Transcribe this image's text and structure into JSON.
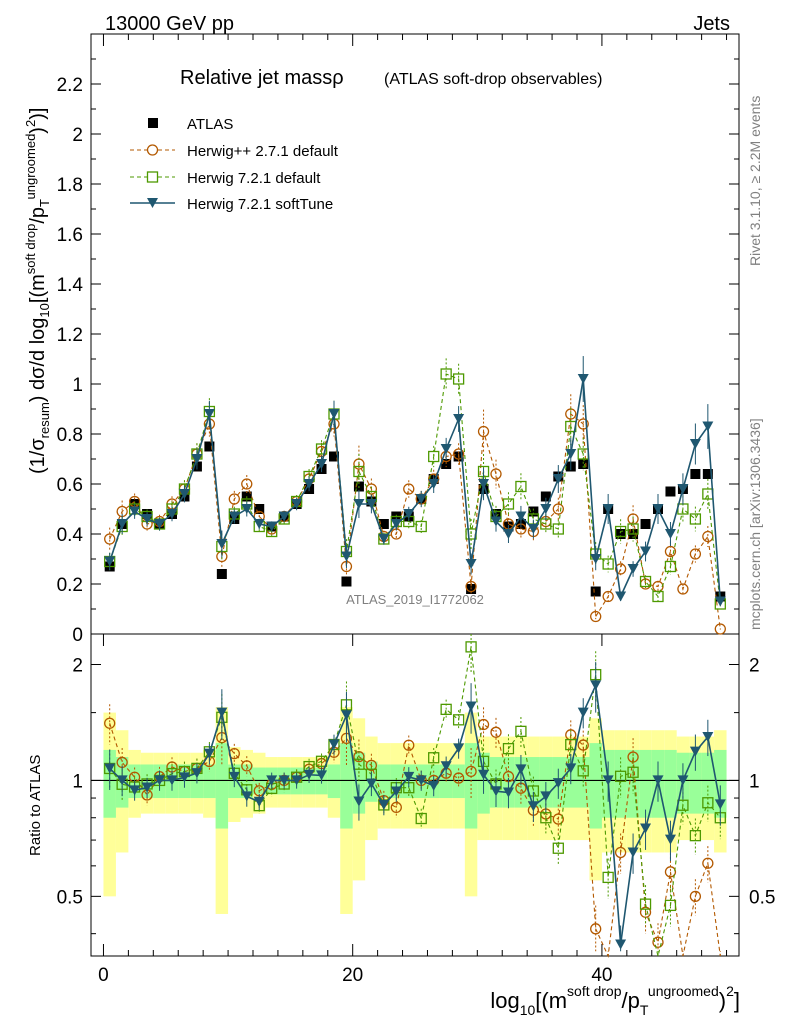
{
  "header": {
    "left": "13000 GeV pp",
    "right": "Jets"
  },
  "title": {
    "main": "Relative jet massρ",
    "sub": "(ATLAS soft-drop observables)"
  },
  "watermark": "ATLAS_2019_I1772062",
  "side_text": {
    "rivet": "Rivet 3.1.10, ≥ 2.2M events",
    "mcplots": "mcplots.cern.ch [arXiv:1306.3436]"
  },
  "axes": {
    "ylabel_main": "(1/σresum) dσ/d log10[(msoft drop/pTungroomed)2]",
    "ylabel_ratio": "Ratio to ATLAS",
    "xlabel": "log10[(msoft drop/pTungroomed)2]",
    "main_yticks": [
      "0",
      "0.2",
      "0.4",
      "0.6",
      "0.8",
      "1",
      "1.2",
      "1.4",
      "1.6",
      "1.8",
      "2",
      "2.2"
    ],
    "ratio_yticks": [
      "0.5",
      "1",
      "2"
    ],
    "xticks": [
      "0",
      "20",
      "40"
    ]
  },
  "legend": [
    {
      "label": "ATLAS",
      "key": "atlas"
    },
    {
      "label": "Herwig++ 2.7.1 default",
      "key": "hpp"
    },
    {
      "label": "Herwig 7.2.1 default",
      "key": "h7d"
    },
    {
      "label": "Herwig 7.2.1 softTune",
      "key": "h7s"
    }
  ],
  "colors": {
    "atlas": "#000000",
    "hpp": "#b35900",
    "h7d": "#4d9900",
    "h7s": "#1f5770",
    "band_inner": "#99ff99",
    "band_outer": "#ffff99"
  },
  "chart_data": {
    "type": "line",
    "x": [
      0.5,
      1.5,
      2.5,
      3.5,
      4.5,
      5.5,
      6.5,
      7.5,
      8.5,
      9.5,
      10.5,
      11.5,
      12.5,
      13.5,
      14.5,
      15.5,
      16.5,
      17.5,
      18.5,
      19.5,
      20.5,
      21.5,
      22.5,
      23.5,
      24.5,
      25.5,
      26.5,
      27.5,
      28.5,
      29.5,
      30.5,
      31.5,
      32.5,
      33.5,
      34.5,
      35.5,
      36.5,
      37.5,
      38.5,
      39.5,
      40.5,
      41.5,
      42.5,
      43.5,
      44.5,
      45.5,
      46.5,
      47.5,
      48.5,
      49.5
    ],
    "xlim": [
      -1,
      51
    ],
    "ylim_main": [
      0,
      2.4
    ],
    "ylim_ratio": [
      0.35,
      2.4
    ],
    "ratio_scale": "log",
    "series": [
      {
        "name": "ATLAS",
        "key": "atlas",
        "marker": "filled-square",
        "values": [
          0.27,
          0.44,
          0.52,
          0.48,
          0.44,
          0.48,
          0.55,
          0.67,
          0.75,
          0.24,
          0.46,
          0.55,
          0.5,
          0.43,
          0.47,
          0.52,
          0.58,
          0.66,
          0.71,
          0.21,
          0.59,
          0.53,
          0.44,
          0.47,
          0.47,
          0.54,
          0.62,
          0.68,
          0.71,
          0.18,
          0.58,
          0.48,
          0.43,
          0.44,
          0.49,
          0.55,
          0.63,
          0.67,
          0.68,
          0.17,
          0.5,
          0.4,
          0.4,
          0.44,
          0.5,
          0.57,
          0.58,
          0.64,
          0.64,
          0.15
        ]
      },
      {
        "name": "Herwig++ 2.7.1 default",
        "key": "hpp",
        "marker": "open-circle",
        "values": [
          0.38,
          0.49,
          0.53,
          0.44,
          0.45,
          0.52,
          0.58,
          0.72,
          0.84,
          0.31,
          0.54,
          0.6,
          0.47,
          0.42,
          0.47,
          0.53,
          0.62,
          0.73,
          0.84,
          0.27,
          0.68,
          0.58,
          0.39,
          0.4,
          0.58,
          0.54,
          0.62,
          0.71,
          0.72,
          0.19,
          0.81,
          0.64,
          0.44,
          0.42,
          0.41,
          0.45,
          0.5,
          0.88,
          0.84,
          0.07,
          0.15,
          0.26,
          0.46,
          0.2,
          0.19,
          0.33,
          0.18,
          0.32,
          0.39,
          0.02
        ]
      },
      {
        "name": "Herwig 7.2.1 default",
        "key": "h7d",
        "marker": "open-square",
        "values": [
          0.29,
          0.43,
          0.5,
          0.47,
          0.44,
          0.5,
          0.58,
          0.72,
          0.89,
          0.35,
          0.48,
          0.52,
          0.43,
          0.41,
          0.46,
          0.53,
          0.63,
          0.74,
          0.88,
          0.33,
          0.65,
          0.55,
          0.38,
          0.45,
          0.45,
          0.43,
          0.71,
          1.04,
          1.02,
          0.4,
          0.65,
          0.47,
          0.52,
          0.59,
          0.46,
          0.44,
          0.42,
          0.83,
          0.72,
          0.32,
          0.28,
          0.41,
          0.42,
          0.21,
          0.15,
          0.27,
          0.5,
          0.46,
          0.56,
          0.12
        ]
      },
      {
        "name": "Herwig 7.2.1 softTune",
        "key": "h7s",
        "marker": "filled-triangle-down",
        "values": [
          0.29,
          0.44,
          0.49,
          0.46,
          0.44,
          0.48,
          0.56,
          0.7,
          0.88,
          0.36,
          0.47,
          0.5,
          0.44,
          0.43,
          0.47,
          0.52,
          0.6,
          0.68,
          0.88,
          0.31,
          0.52,
          0.52,
          0.38,
          0.44,
          0.48,
          0.54,
          0.6,
          0.74,
          0.86,
          0.28,
          0.6,
          0.45,
          0.4,
          0.47,
          0.42,
          0.5,
          0.62,
          0.72,
          1.02,
          0.3,
          0.5,
          0.15,
          0.26,
          0.33,
          0.5,
          0.4,
          0.58,
          0.76,
          0.83,
          0.13
        ]
      }
    ],
    "ratio_bands": {
      "inner": [
        0.2,
        0.15,
        0.1,
        0.1,
        0.1,
        0.1,
        0.1,
        0.1,
        0.1,
        0.25,
        0.1,
        0.1,
        0.08,
        0.08,
        0.08,
        0.08,
        0.08,
        0.08,
        0.1,
        0.25,
        0.18,
        0.12,
        0.1,
        0.1,
        0.1,
        0.1,
        0.1,
        0.1,
        0.1,
        0.25,
        0.18,
        0.15,
        0.15,
        0.15,
        0.15,
        0.15,
        0.15,
        0.15,
        0.15,
        0.25,
        0.2,
        0.2,
        0.2,
        0.2,
        0.2,
        0.2,
        0.18,
        0.18,
        0.18,
        0.2
      ],
      "outer": [
        0.5,
        0.35,
        0.2,
        0.18,
        0.18,
        0.18,
        0.18,
        0.18,
        0.2,
        0.55,
        0.22,
        0.2,
        0.18,
        0.15,
        0.15,
        0.15,
        0.15,
        0.15,
        0.2,
        0.55,
        0.45,
        0.3,
        0.25,
        0.25,
        0.25,
        0.25,
        0.25,
        0.25,
        0.25,
        0.5,
        0.3,
        0.3,
        0.3,
        0.3,
        0.3,
        0.3,
        0.3,
        0.3,
        0.3,
        0.45,
        0.35,
        0.35,
        0.35,
        0.35,
        0.35,
        0.35,
        0.3,
        0.3,
        0.3,
        0.35
      ]
    }
  }
}
